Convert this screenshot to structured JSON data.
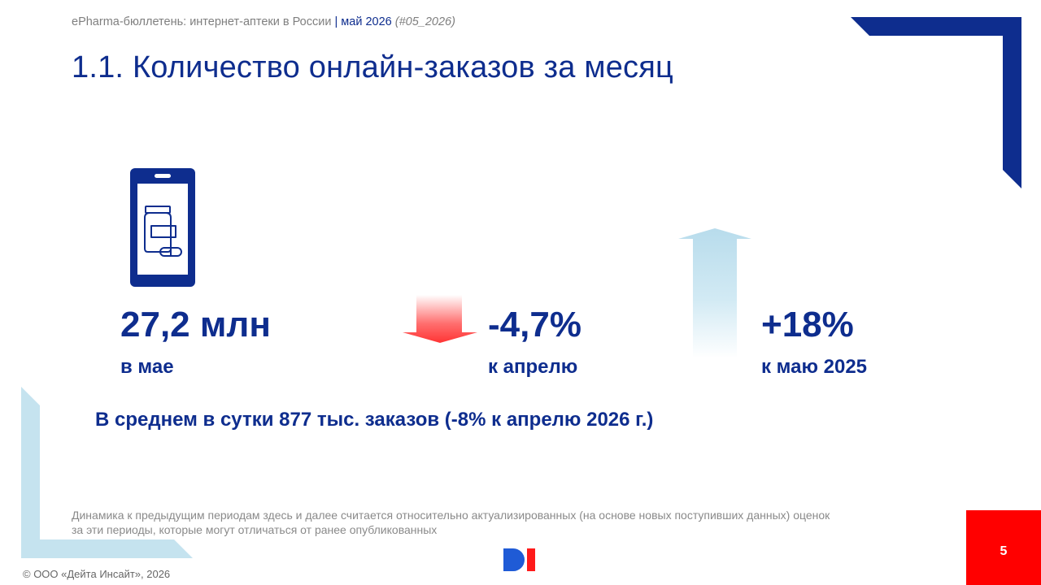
{
  "header": {
    "bulletin": "ePharma-бюллетень: интернет-аптеки в России",
    "separator": "|",
    "period": "май 2026",
    "issue": "(#05_2026)"
  },
  "title": "1.1. Количество онлайн-заказов за месяц",
  "kpis": [
    {
      "value": "27,2 млн",
      "caption": "в мае"
    },
    {
      "value": "-4,7%",
      "caption": "к апрелю",
      "trend": "down",
      "trend_color": "#ff3b3b"
    },
    {
      "value": "+18%",
      "caption": "к маю 2025",
      "trend": "up",
      "trend_color": "#b8dcec"
    }
  ],
  "daily_average": "В среднем в сутки 877 тыс. заказов (-8% к апрелю 2026 г.)",
  "footnote": {
    "line1": "Динамика к предыдущим периодам здесь и далее считается относительно актуализированных (на основе новых поступивших данных) оценок",
    "line2": "за эти периоды, которые могут отличаться от ранее опубликованных"
  },
  "copyright": "© ООО «Дейта Инсайт», 2026",
  "page_number": "5",
  "icons": {
    "kpi_icon": "smartphone-medicine-icon",
    "down_icon": "arrow-down-icon",
    "up_icon": "arrow-up-icon",
    "logo": "di-logo"
  },
  "colors": {
    "primary": "#0e2d8e",
    "accent_red": "#ff0000",
    "light_blue": "#b8dcec",
    "muted_text": "#8a8a8a"
  }
}
